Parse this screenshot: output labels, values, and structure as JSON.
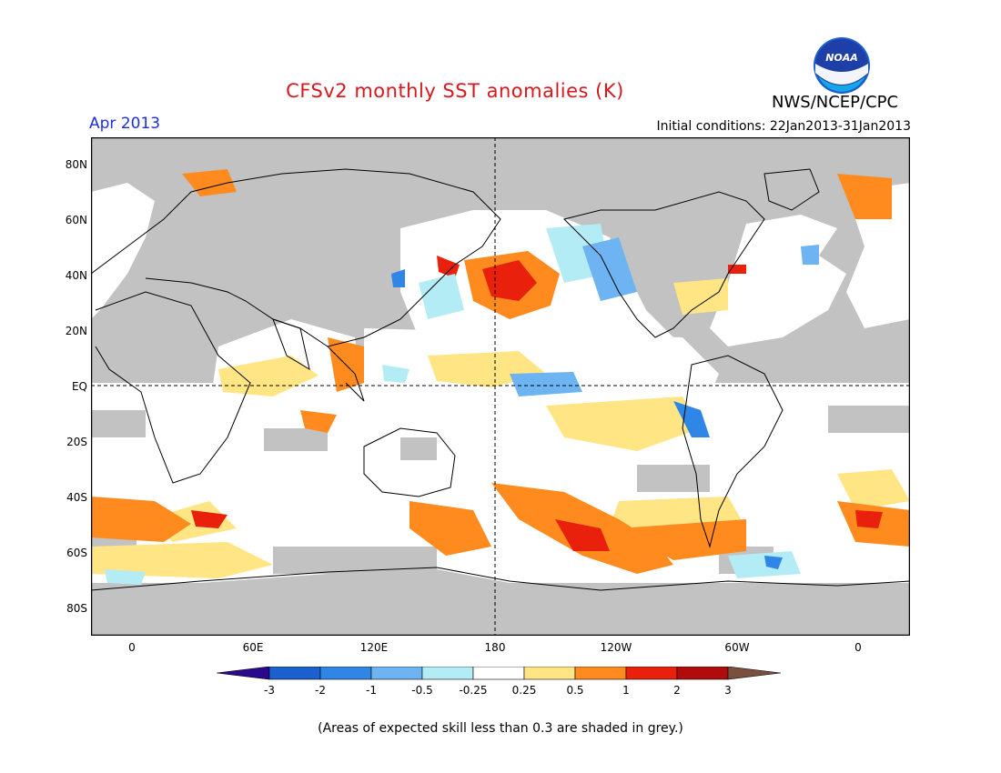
{
  "title": "CFSv2 monthly SST anomalies (K)",
  "valid_month": "Apr 2013",
  "initial_conditions": "Initial conditions: 22Jan2013-31Jan2013",
  "agency": "NWS/NCEP/CPC",
  "logo_text": "NOAA",
  "lat_labels": [
    "80N",
    "60N",
    "40N",
    "20N",
    "EQ",
    "20S",
    "40S",
    "60S",
    "80S"
  ],
  "lon_labels": [
    "0",
    "60E",
    "120E",
    "180",
    "120W",
    "60W",
    "0"
  ],
  "colorbar": {
    "labels": [
      "-3",
      "-2",
      "-1",
      "-0.5",
      "-0.25",
      "0.25",
      "0.5",
      "1",
      "2",
      "3"
    ],
    "colors": [
      "#2a0a8c",
      "#1c5fcf",
      "#2f86e6",
      "#6eb3f2",
      "#b4ecf5",
      "#ffffff",
      "#ffe583",
      "#ff8a1e",
      "#e8200c",
      "#b10c0c",
      "#7a4f3e"
    ]
  },
  "note": "(Areas of expected skill less than 0.3 are shaded in grey.)",
  "colors": {
    "land": "#c2c2c2",
    "title": "#d9181e",
    "valid": "#1d2ee0"
  }
}
